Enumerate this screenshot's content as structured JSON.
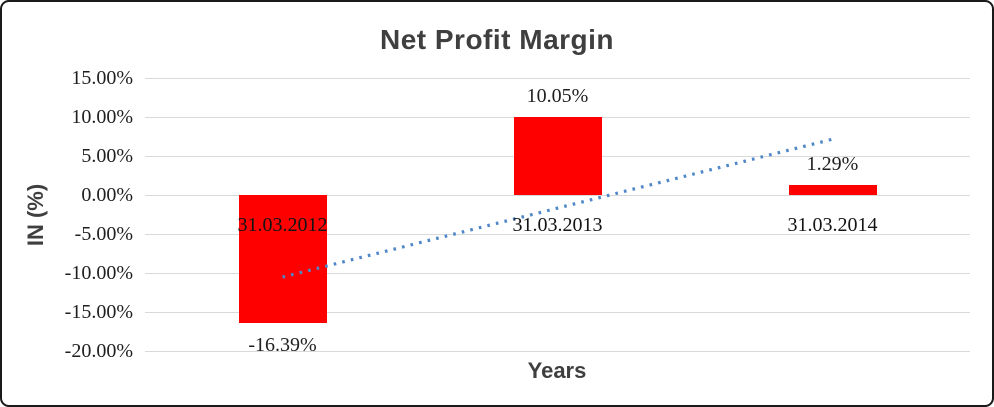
{
  "chart_data": {
    "type": "bar",
    "title": "Net Profit Margin",
    "xlabel": "Years",
    "ylabel": "IN (%)",
    "categories": [
      "31.03.2012",
      "31.03.2013",
      "31.03.2014"
    ],
    "values": [
      -16.39,
      10.05,
      1.29
    ],
    "data_labels": [
      "-16.39%",
      "10.05%",
      "1.29%"
    ],
    "ylim": [
      -20,
      15
    ],
    "ytick_step": 5,
    "ytick_labels": [
      "15.00%",
      "10.00%",
      "5.00%",
      "0.00%",
      "-5.00%",
      "-10.00%",
      "-15.00%",
      "-20.00%"
    ],
    "grid": true,
    "legend": false,
    "trendline": {
      "type": "linear",
      "style": "dotted",
      "start_category_index": 0,
      "end_category_index": 2,
      "start_value": -10.52,
      "end_value": 7.16
    }
  },
  "colors": {
    "bar": "#ff0000",
    "trendline": "#4e86c8",
    "gridline": "#d9d9d9",
    "label_text": "#1f1f1f",
    "title_text": "#3f3f3f",
    "border": "#1a1a1a"
  }
}
